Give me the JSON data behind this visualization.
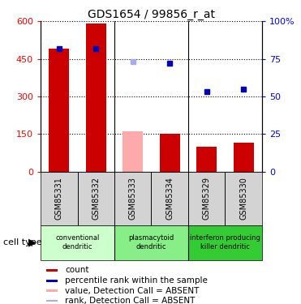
{
  "title": "GDS1654 / 99856_r_at",
  "samples": [
    "GSM85331",
    "GSM85332",
    "GSM85333",
    "GSM85334",
    "GSM85329",
    "GSM85330"
  ],
  "bar_values": [
    490,
    590,
    160,
    150,
    100,
    115
  ],
  "bar_colors": [
    "#cc0000",
    "#cc0000",
    "#ffaaaa",
    "#cc0000",
    "#cc0000",
    "#cc0000"
  ],
  "dot_values_pct": [
    82,
    82,
    73,
    72,
    53,
    55
  ],
  "dot_colors": [
    "#0000bb",
    "#0000bb",
    "#aaaaee",
    "#0000bb",
    "#0000bb",
    "#0000bb"
  ],
  "ylim_left": [
    0,
    600
  ],
  "ylim_right": [
    0,
    100
  ],
  "yticks_left": [
    0,
    150,
    300,
    450,
    600
  ],
  "yticks_right": [
    0,
    25,
    50,
    75,
    100
  ],
  "ytick_labels_left": [
    "0",
    "150",
    "300",
    "450",
    "600"
  ],
  "ytick_labels_right": [
    "0",
    "25",
    "50",
    "75",
    "100%"
  ],
  "groups": [
    {
      "label": "conventional\ndendritic",
      "start": 0,
      "end": 2,
      "color": "#ccffcc"
    },
    {
      "label": "plasmacytoid\ndendritic",
      "start": 2,
      "end": 4,
      "color": "#88ee88"
    },
    {
      "label": "interferon producing\nkiller dendritic",
      "start": 4,
      "end": 6,
      "color": "#33cc33"
    }
  ],
  "legend_items": [
    {
      "label": "count",
      "color": "#cc0000"
    },
    {
      "label": "percentile rank within the sample",
      "color": "#0000bb"
    },
    {
      "label": "value, Detection Call = ABSENT",
      "color": "#ffaaaa"
    },
    {
      "label": "rank, Detection Call = ABSENT",
      "color": "#aaaaee"
    }
  ],
  "cell_type_label": "cell type",
  "bar_width": 0.55
}
